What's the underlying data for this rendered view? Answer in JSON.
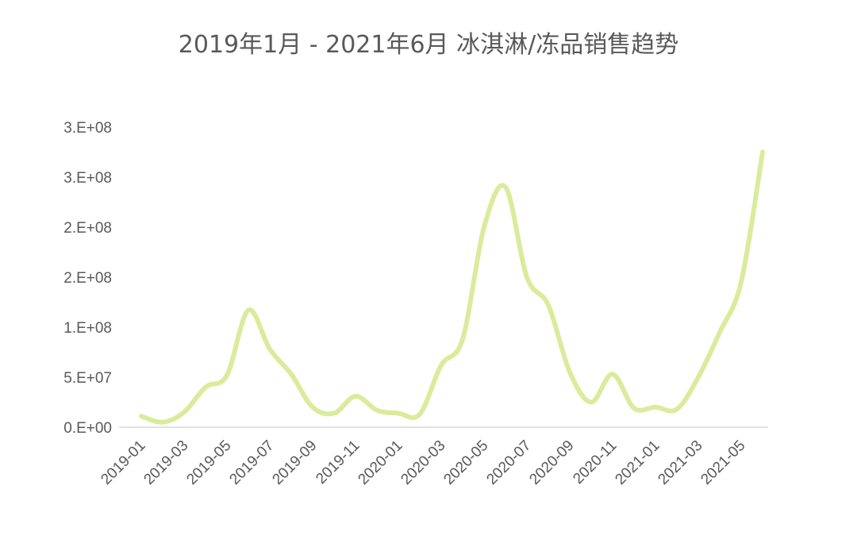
{
  "chart_data": {
    "type": "line",
    "title": "2019年1月 - 2021年6月 冰淇淋/冻品销售趋势",
    "xlabel": "",
    "ylabel": "",
    "x_tick_labels": [
      "2019-01",
      "2019-03",
      "2019-05",
      "2019-07",
      "2019-09",
      "2019-11",
      "2020-01",
      "2020-03",
      "2020-05",
      "2020-07",
      "2020-09",
      "2020-11",
      "2021-01",
      "2021-03",
      "2021-05"
    ],
    "y_tick_labels": [
      "0.E+00",
      "5.E+07",
      "1.E+08",
      "2.E+08",
      "2.E+08",
      "3.E+08",
      "3.E+08"
    ],
    "ylim": [
      0,
      300000000
    ],
    "grid": false,
    "legend": "none",
    "series": [
      {
        "color": "#dbeb9c",
        "x": [
          "2019-01",
          "2019-02",
          "2019-03",
          "2019-04",
          "2019-05",
          "2019-06",
          "2019-07",
          "2019-08",
          "2019-09",
          "2019-10",
          "2019-11",
          "2019-12",
          "2020-01",
          "2020-02",
          "2020-03",
          "2020-04",
          "2020-05",
          "2020-06",
          "2020-07",
          "2020-08",
          "2020-09",
          "2020-10",
          "2020-11",
          "2020-12",
          "2021-01",
          "2021-02",
          "2021-03",
          "2021-04",
          "2021-05",
          "2021-06"
        ],
        "values": [
          11000000,
          5000000,
          15000000,
          40000000,
          52000000,
          117000000,
          78000000,
          53000000,
          20000000,
          14000000,
          31000000,
          17000000,
          14000000,
          13000000,
          62000000,
          88000000,
          200000000,
          240000000,
          150000000,
          122000000,
          55000000,
          25000000,
          53000000,
          19000000,
          20000000,
          18000000,
          50000000,
          95000000,
          145000000,
          275000000
        ]
      }
    ]
  }
}
